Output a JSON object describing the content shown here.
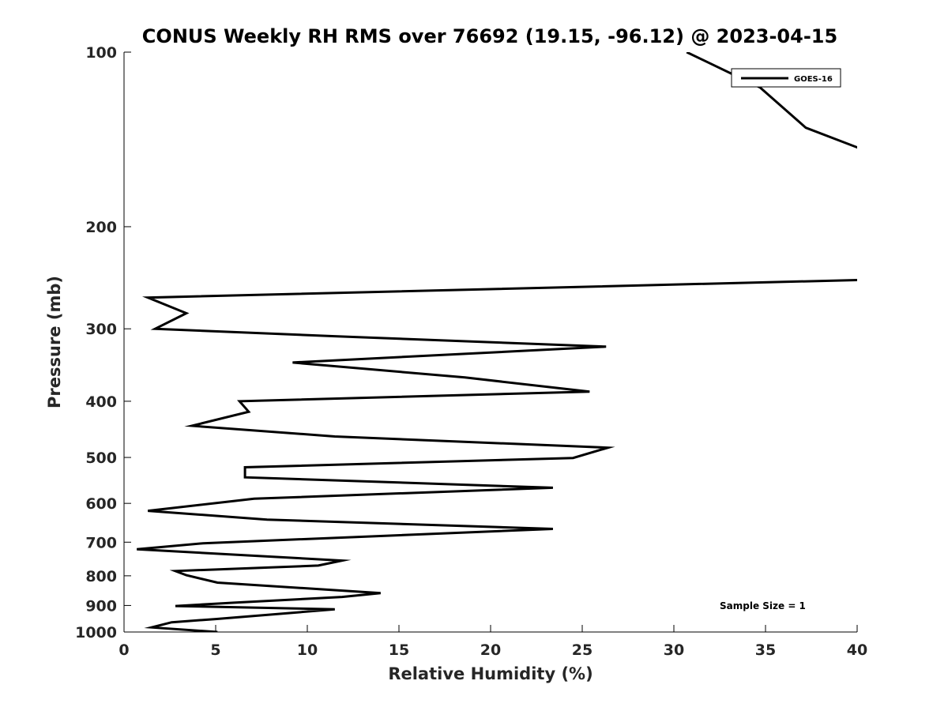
{
  "chart_data": {
    "type": "line",
    "title": "CONUS Weekly RH RMS over 76692 (19.15, -96.12) @ 2023-04-15",
    "xlabel": "Relative Humidity (%)",
    "ylabel": "Pressure (mb)",
    "xlim": [
      0,
      40
    ],
    "ylim": [
      100,
      1000
    ],
    "yscale": "log",
    "y_reversed": true,
    "xticks": [
      0,
      5,
      10,
      15,
      20,
      25,
      30,
      35,
      40
    ],
    "yticks": [
      100,
      200,
      300,
      400,
      500,
      600,
      700,
      800,
      900,
      1000
    ],
    "grid": false,
    "legend_position": "top-right",
    "annotation": "Sample Size = 1",
    "series": [
      {
        "name": "GOES-16",
        "color": "#000000",
        "points": [
          [
            30.7,
            100
          ],
          [
            34.7,
            115
          ],
          [
            37.2,
            135
          ],
          [
            40.5,
            148
          ],
          [
            null,
            null
          ],
          [
            40.5,
            247
          ],
          [
            1.3,
            265
          ],
          [
            3.4,
            282
          ],
          [
            1.7,
            300
          ],
          [
            11.5,
            309
          ],
          [
            26.3,
            322
          ],
          [
            9.2,
            343
          ],
          [
            18.6,
            364
          ],
          [
            25.4,
            385
          ],
          [
            6.3,
            400
          ],
          [
            6.8,
            417
          ],
          [
            3.7,
            441
          ],
          [
            11.5,
            460
          ],
          [
            26.4,
            481
          ],
          [
            24.5,
            501
          ],
          [
            6.6,
            520
          ],
          [
            6.6,
            541
          ],
          [
            23.4,
            564
          ],
          [
            7.1,
            589
          ],
          [
            1.3,
            618
          ],
          [
            7.8,
            640
          ],
          [
            23.4,
            664
          ],
          [
            4.3,
            703
          ],
          [
            0.7,
            720
          ],
          [
            11.9,
            753
          ],
          [
            10.6,
            768
          ],
          [
            2.8,
            785
          ],
          [
            3.4,
            798
          ],
          [
            5.1,
            822
          ],
          [
            14,
            857
          ],
          [
            11.9,
            870
          ],
          [
            6,
            890
          ],
          [
            2.8,
            902
          ],
          [
            11.5,
            914
          ],
          [
            5,
            950
          ],
          [
            2.6,
            962
          ],
          [
            1.5,
            982
          ],
          [
            5.1,
            1000
          ]
        ]
      }
    ]
  }
}
